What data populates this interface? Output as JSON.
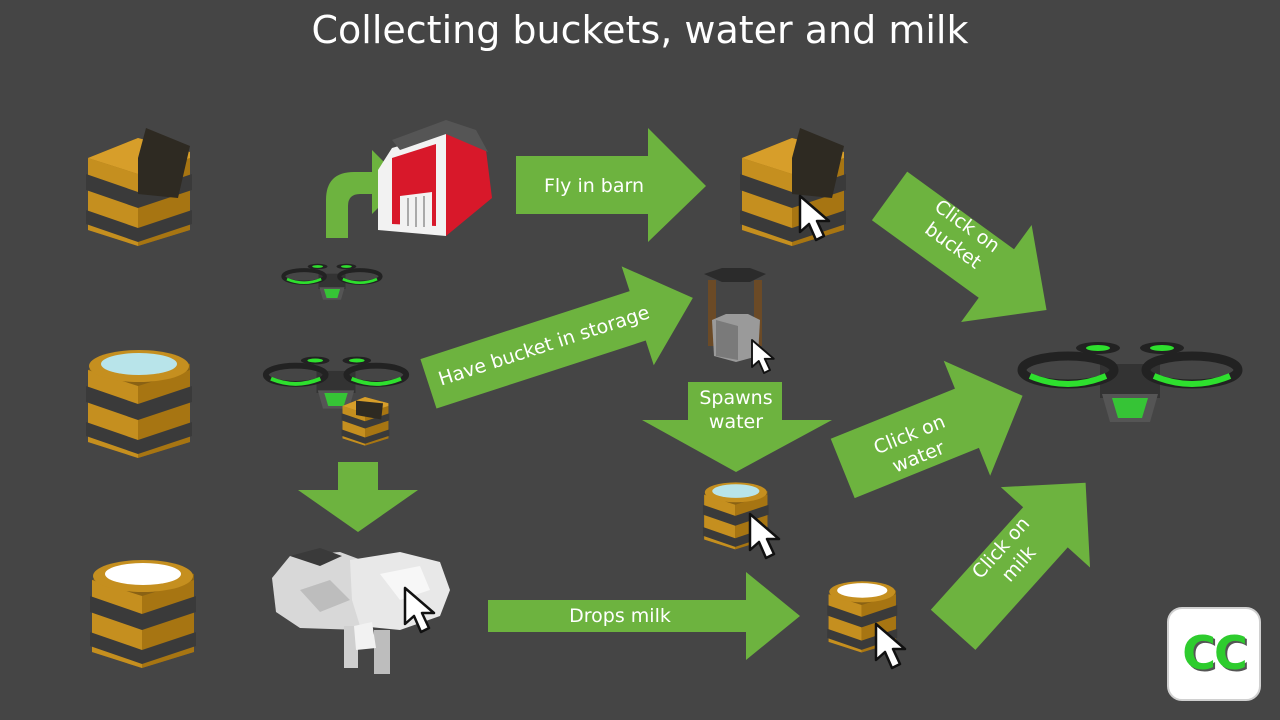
{
  "title": "Collecting buckets, water and milk",
  "labels": {
    "fly_in_barn": "Fly in barn",
    "have_bucket": "Have bucket in storage",
    "spawns_water": [
      "Spawns",
      "water"
    ],
    "click_on_bucket": [
      "Click on",
      "bucket"
    ],
    "click_on_water": [
      "Click on",
      "water"
    ],
    "click_on_milk": [
      "Click on",
      "milk"
    ],
    "drops_milk": "Drops milk"
  },
  "logo": {
    "text": "CC"
  },
  "colors": {
    "background": "#454545",
    "arrow": "#6db33f",
    "bucket_wood": "#c58f1f",
    "bucket_band": "#3a3a3a",
    "water": "#b8e4ea",
    "milk": "#ffffff",
    "drone_green": "#2ee02e",
    "barn_red": "#d8182a"
  },
  "icons": [
    "empty-bucket-icon",
    "water-bucket-icon",
    "milk-bucket-icon",
    "barn-icon",
    "drone-icon",
    "well-icon",
    "cow-icon",
    "mouse-cursor-icon"
  ]
}
